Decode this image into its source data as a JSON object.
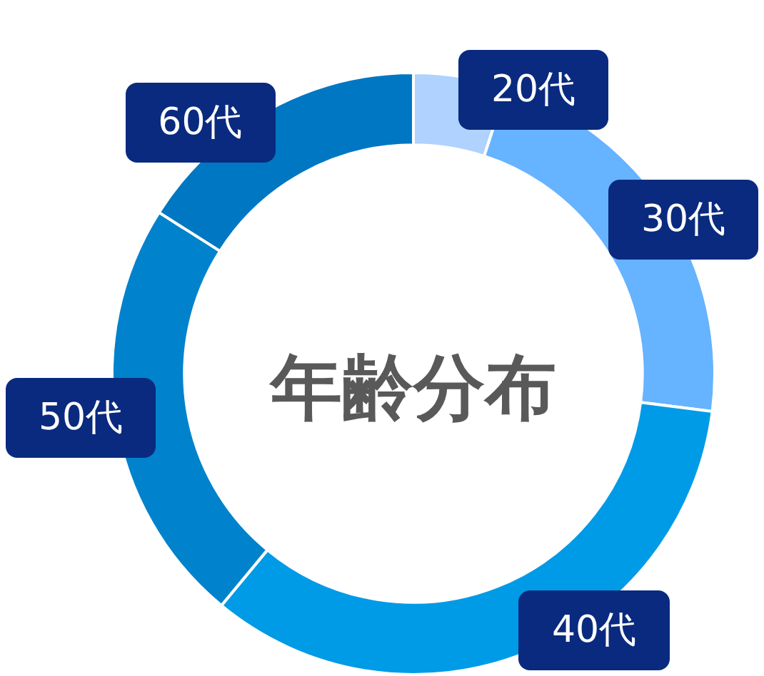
{
  "chart_data": {
    "type": "donut",
    "title": "年齢分布",
    "categories": [
      "20代",
      "30代",
      "40代",
      "50代",
      "60代"
    ],
    "values": [
      5,
      22,
      34,
      23,
      16
    ],
    "colors": [
      "#afd2ff",
      "#66b3ff",
      "#009be6",
      "#0082cc",
      "#0077c2"
    ],
    "legend": false
  }
}
